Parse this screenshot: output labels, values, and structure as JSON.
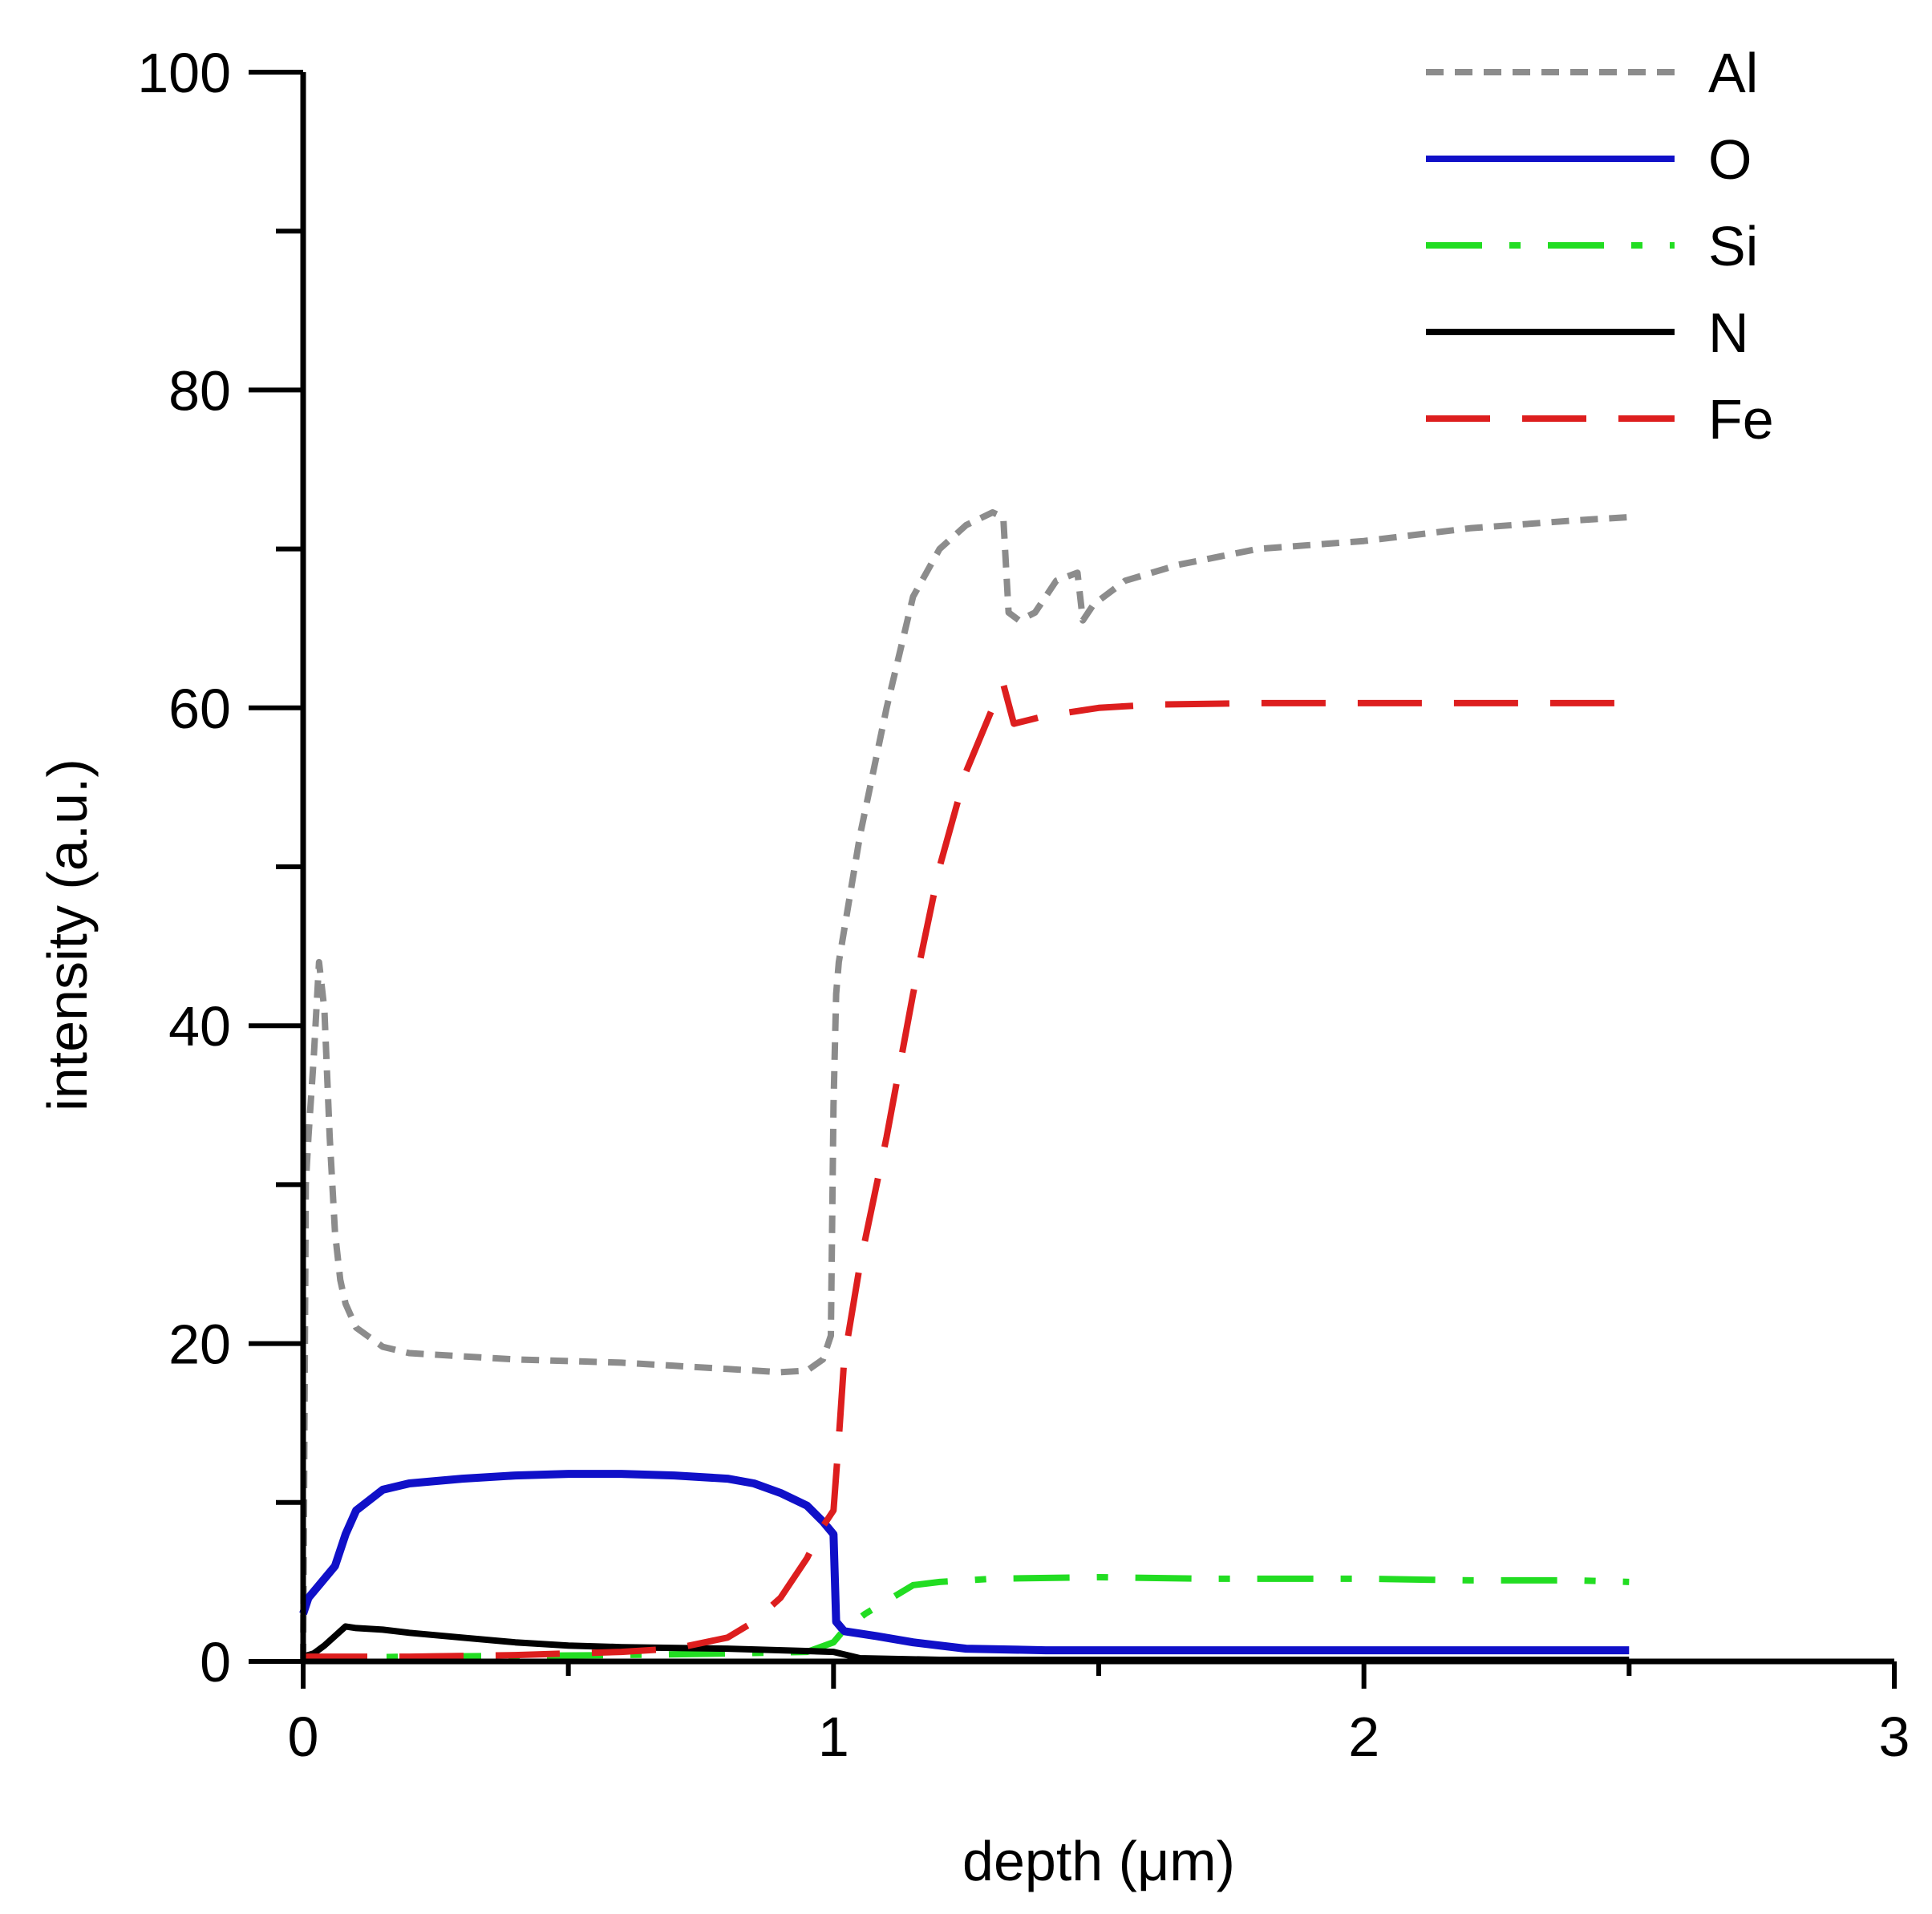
{
  "chart_data": {
    "type": "line",
    "title": "",
    "xlabel": "depth (μm)",
    "ylabel": "intensity (a.u.)",
    "xlim": [
      0,
      3
    ],
    "ylim": [
      0,
      100
    ],
    "x_ticks": [
      0,
      1,
      2,
      3
    ],
    "x_tick_labels": [
      "0",
      "1",
      "2",
      "3"
    ],
    "x_minor_ticks": [
      0.5,
      1.5,
      2.5
    ],
    "y_ticks": [
      0,
      20,
      40,
      60,
      80,
      100
    ],
    "y_tick_labels": [
      "0",
      "20",
      "40",
      "60",
      "80",
      "100"
    ],
    "y_minor_ticks": [
      10,
      30,
      50,
      70,
      90
    ],
    "grid": false,
    "legend_position": "top-right",
    "series": [
      {
        "name": "Al",
        "color": "#8c8c8c",
        "dash": "short-dash",
        "x": [
          0.0,
          0.005,
          0.01,
          0.02,
          0.03,
          0.04,
          0.05,
          0.06,
          0.07,
          0.08,
          0.1,
          0.15,
          0.2,
          0.3,
          0.4,
          0.5,
          0.6,
          0.7,
          0.8,
          0.9,
          0.95,
          0.98,
          0.995,
          1.0,
          1.005,
          1.01,
          1.05,
          1.1,
          1.15,
          1.2,
          1.25,
          1.3,
          1.32,
          1.33,
          1.35,
          1.38,
          1.42,
          1.46,
          1.47,
          1.49,
          1.55,
          1.65,
          1.8,
          2.0,
          2.2,
          2.4,
          2.5
        ],
        "values": [
          0,
          30,
          33,
          38,
          44,
          41,
          33,
          27,
          24,
          22.5,
          21,
          19.8,
          19.4,
          19.2,
          19.0,
          18.9,
          18.8,
          18.6,
          18.4,
          18.2,
          18.3,
          19.0,
          20.5,
          35,
          42,
          44,
          52,
          60,
          67,
          70,
          71.5,
          72.3,
          72,
          66,
          65.5,
          66,
          68,
          68.5,
          65.5,
          66.5,
          68,
          69,
          70,
          70.5,
          71.3,
          71.8,
          72
        ]
      },
      {
        "name": "O",
        "color": "#1010c8",
        "dash": "solid",
        "x": [
          0.0,
          0.01,
          0.03,
          0.06,
          0.08,
          0.1,
          0.15,
          0.2,
          0.3,
          0.4,
          0.5,
          0.6,
          0.7,
          0.8,
          0.85,
          0.9,
          0.95,
          0.98,
          1.0,
          1.005,
          1.02,
          1.08,
          1.15,
          1.25,
          1.4,
          1.7,
          2.0,
          2.3,
          2.5
        ],
        "values": [
          3,
          4,
          4.8,
          6,
          8,
          9.5,
          10.8,
          11.2,
          11.5,
          11.7,
          11.8,
          11.8,
          11.7,
          11.5,
          11.2,
          10.6,
          9.8,
          8.8,
          8.0,
          2.5,
          1.9,
          1.6,
          1.2,
          0.8,
          0.7,
          0.7,
          0.7,
          0.7,
          0.7
        ]
      },
      {
        "name": "Si",
        "color": "#22dd22",
        "dash": "dash-dot",
        "x": [
          0.0,
          0.2,
          0.4,
          0.6,
          0.8,
          0.95,
          1.0,
          1.02,
          1.06,
          1.1,
          1.15,
          1.2,
          1.3,
          1.5,
          1.7,
          2.0,
          2.2,
          2.4,
          2.5
        ],
        "values": [
          0.2,
          0.3,
          0.35,
          0.4,
          0.5,
          0.6,
          1.2,
          2.0,
          3.0,
          3.8,
          4.8,
          5.0,
          5.2,
          5.3,
          5.2,
          5.2,
          5.1,
          5.1,
          5.0
        ]
      },
      {
        "name": "N",
        "color": "#000000",
        "dash": "solid",
        "x": [
          0.0,
          0.02,
          0.04,
          0.06,
          0.08,
          0.1,
          0.15,
          0.2,
          0.3,
          0.4,
          0.5,
          0.6,
          0.8,
          1.0,
          1.05,
          1.2,
          1.5,
          2.0,
          2.5
        ],
        "values": [
          0.3,
          0.5,
          1.0,
          1.6,
          2.2,
          2.1,
          2.0,
          1.8,
          1.5,
          1.2,
          1.0,
          0.9,
          0.8,
          0.6,
          0.2,
          0.1,
          0.1,
          0.1,
          0.1
        ]
      },
      {
        "name": "Fe",
        "color": "#dd1e1e",
        "dash": "long-dash",
        "x": [
          0.0,
          0.2,
          0.4,
          0.6,
          0.7,
          0.8,
          0.85,
          0.9,
          0.95,
          0.98,
          1.0,
          1.01,
          1.02,
          1.05,
          1.1,
          1.15,
          1.2,
          1.25,
          1.3,
          1.32,
          1.34,
          1.4,
          1.5,
          1.6,
          1.8,
          2.0,
          2.5
        ],
        "values": [
          0.3,
          0.3,
          0.4,
          0.6,
          0.8,
          1.5,
          2.5,
          4.0,
          6.5,
          8.5,
          9.5,
          14,
          19,
          25,
          33,
          42,
          50,
          56,
          60,
          61.5,
          59,
          59.5,
          60,
          60.2,
          60.3,
          60.3,
          60.3
        ]
      }
    ]
  }
}
